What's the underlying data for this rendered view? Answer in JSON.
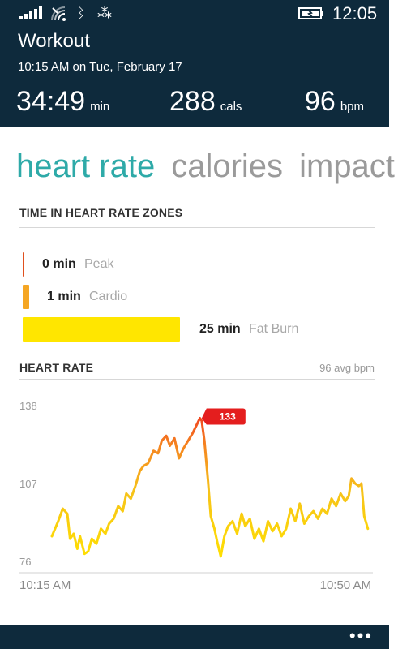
{
  "status": {
    "time": "12:05",
    "icons": [
      "signal-icon",
      "wifi-icon",
      "bluetooth-icon",
      "data-sync-icon",
      "battery-charging-icon"
    ]
  },
  "header": {
    "title": "Workout",
    "datetime": "10:15 AM on Tue, February 17",
    "duration": {
      "value": "34:49",
      "unit": "min"
    },
    "calories": {
      "value": "288",
      "unit": "cals"
    },
    "heart_rate": {
      "value": "96",
      "unit": "bpm"
    }
  },
  "pivot": {
    "items": [
      "heart rate",
      "calories",
      "impact"
    ],
    "active": "heart rate"
  },
  "zones": {
    "title": "TIME IN HEART RATE ZONES",
    "items": [
      {
        "value": "0 min",
        "name": "Peak",
        "minutes": 0,
        "color": "#e0501e"
      },
      {
        "value": "1 min",
        "name": "Cardio",
        "minutes": 1,
        "color": "#f5a623"
      },
      {
        "value": "25 min",
        "name": "Fat Burn",
        "minutes": 25,
        "color": "#ffe600"
      }
    ]
  },
  "heart_rate_section": {
    "title": "HEART RATE",
    "avg": "96 avg bpm"
  },
  "chart_data": {
    "type": "line",
    "ylim": [
      76,
      138
    ],
    "y_ticks": [
      "138",
      "107",
      "76"
    ],
    "x_ticks": [
      "10:15 AM",
      "10:50 AM"
    ],
    "xlim": [
      0,
      35
    ],
    "peak_label": "133",
    "peak": {
      "x": 16.5,
      "y": 133
    },
    "series": [
      {
        "x": [
          0,
          0.7,
          1.2,
          1.7,
          2.0,
          2.4,
          2.8,
          3.1,
          3.6,
          4.0,
          4.4,
          4.9,
          5.4,
          5.9,
          6.3,
          6.8,
          7.3,
          7.8,
          8.2,
          8.7,
          9.2,
          9.7,
          10.1,
          10.6,
          11.2,
          11.7,
          12.1,
          12.6,
          13.0,
          13.5,
          14.0,
          14.5,
          15.0,
          15.5,
          15.9,
          16.3,
          16.5,
          16.8,
          17.2,
          17.5,
          17.9,
          18.2,
          18.6,
          19.0,
          19.4,
          19.9,
          20.4,
          20.9,
          21.3,
          21.8,
          22.3,
          22.8,
          23.3,
          23.8,
          24.3,
          24.8,
          25.3,
          25.8,
          26.3,
          26.8,
          27.3,
          27.8,
          28.3,
          28.8,
          29.3,
          29.8,
          30.3,
          30.8,
          31.3,
          31.8,
          32.3,
          32.7,
          33.0,
          33.4,
          33.8,
          34.1,
          34.4,
          34.8
        ],
        "y": [
          86,
          92,
          97,
          95,
          85,
          87,
          81,
          86,
          79,
          80,
          85,
          83,
          89,
          87,
          91,
          93,
          98,
          96,
          103,
          101,
          106,
          112,
          114,
          115,
          120,
          119,
          124,
          126,
          122,
          125,
          117,
          121,
          124,
          127,
          130,
          133,
          132,
          124,
          108,
          94,
          89,
          84,
          78,
          86,
          90,
          92,
          87,
          95,
          90,
          93,
          85,
          89,
          84,
          92,
          88,
          91,
          86,
          89,
          97,
          92,
          99,
          91,
          94,
          96,
          93,
          97,
          95,
          101,
          98,
          103,
          100,
          102,
          109,
          107,
          106,
          107,
          94,
          89
        ]
      }
    ]
  }
}
